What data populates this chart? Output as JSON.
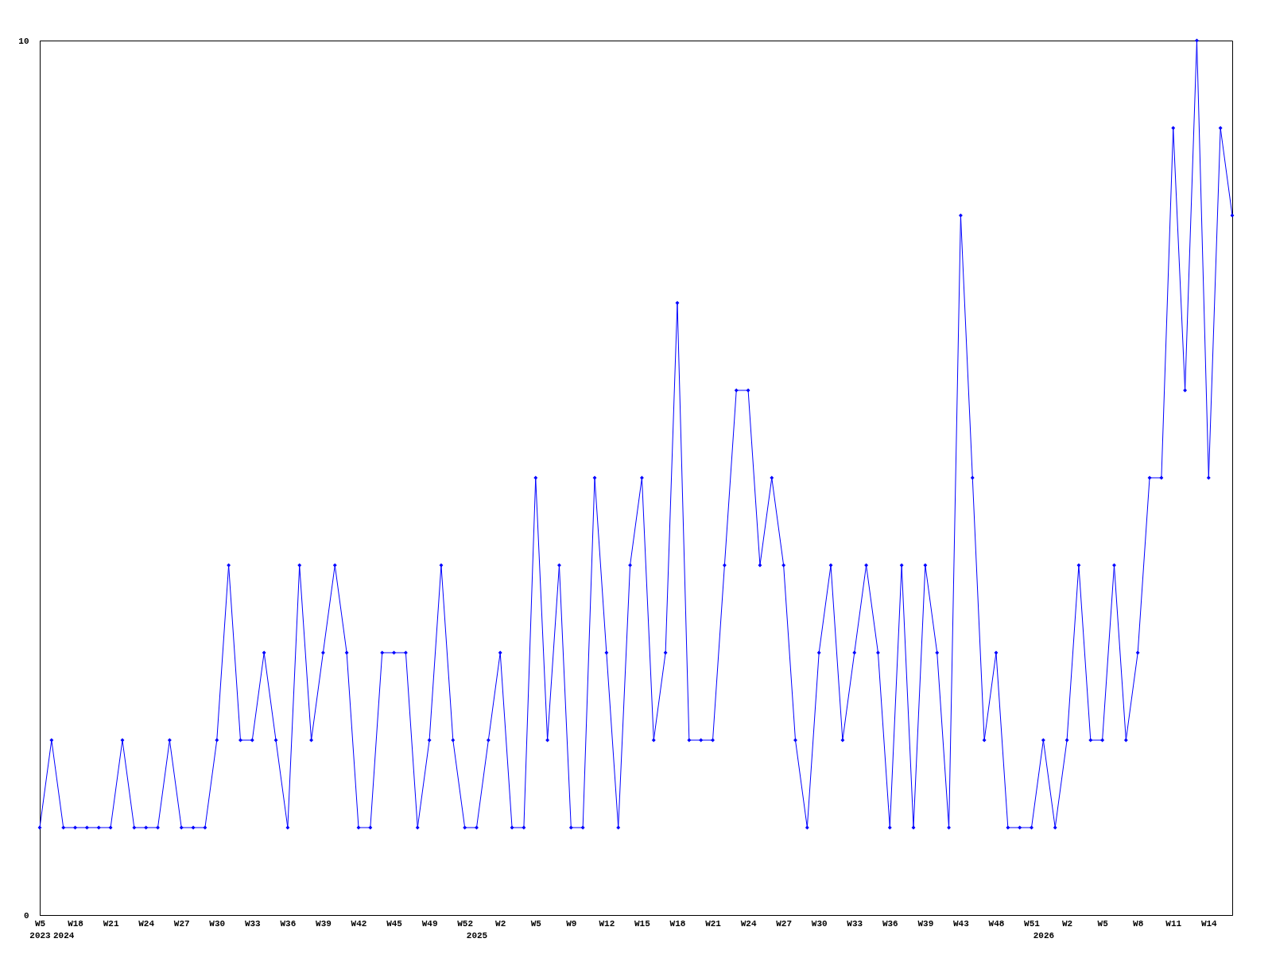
{
  "chart_data": {
    "type": "line",
    "categories": [
      "W5\n2023",
      null,
      "\n2024",
      "W18",
      null,
      null,
      "W21",
      null,
      null,
      "W24",
      null,
      null,
      "W27",
      null,
      null,
      "W30",
      null,
      null,
      "W33",
      null,
      null,
      "W36",
      null,
      null,
      "W39",
      null,
      null,
      "W42",
      null,
      null,
      "W45",
      null,
      null,
      "W49",
      null,
      null,
      "W52",
      "\n2025",
      null,
      "W2",
      null,
      null,
      "W5",
      null,
      null,
      "W9",
      null,
      null,
      "W12",
      null,
      null,
      "W15",
      null,
      null,
      "W18",
      null,
      null,
      "W21",
      null,
      null,
      "W24",
      null,
      null,
      "W27",
      null,
      null,
      "W30",
      null,
      null,
      "W33",
      null,
      null,
      "W36",
      null,
      null,
      "W39",
      null,
      null,
      "W43",
      null,
      null,
      "W48",
      null,
      null,
      "W51",
      "\n2026",
      null,
      "W2",
      null,
      null,
      "W5",
      null,
      null,
      "W8",
      null,
      null,
      "W11",
      null,
      null,
      "W14",
      null,
      null
    ],
    "series": [
      {
        "color": "#0000ff",
        "values": [
          1,
          2,
          1,
          1,
          1,
          1,
          1,
          2,
          1,
          1,
          1,
          2,
          1,
          1,
          1,
          2,
          4,
          2,
          2,
          3,
          2,
          1,
          4,
          2,
          3,
          4,
          3,
          1,
          1,
          3,
          3,
          3,
          1,
          2,
          4,
          2,
          1,
          1,
          2,
          3,
          1,
          1,
          5,
          2,
          4,
          1,
          1,
          5,
          3,
          1,
          4,
          5,
          2,
          3,
          7,
          2,
          2,
          2,
          4,
          6,
          6,
          4,
          5,
          4,
          2,
          1,
          3,
          4,
          2,
          3,
          4,
          3,
          1,
          4,
          1,
          4,
          3,
          1,
          8,
          5,
          2,
          3,
          1,
          1,
          1,
          2,
          1,
          2,
          4,
          2,
          2,
          4,
          2,
          3,
          5,
          5,
          9,
          6,
          10,
          5,
          9,
          8
        ]
      }
    ],
    "ylim": [
      0,
      10
    ],
    "yticks": [
      0,
      10
    ],
    "grid": false,
    "marker": "diamond",
    "line_style": "solid"
  }
}
